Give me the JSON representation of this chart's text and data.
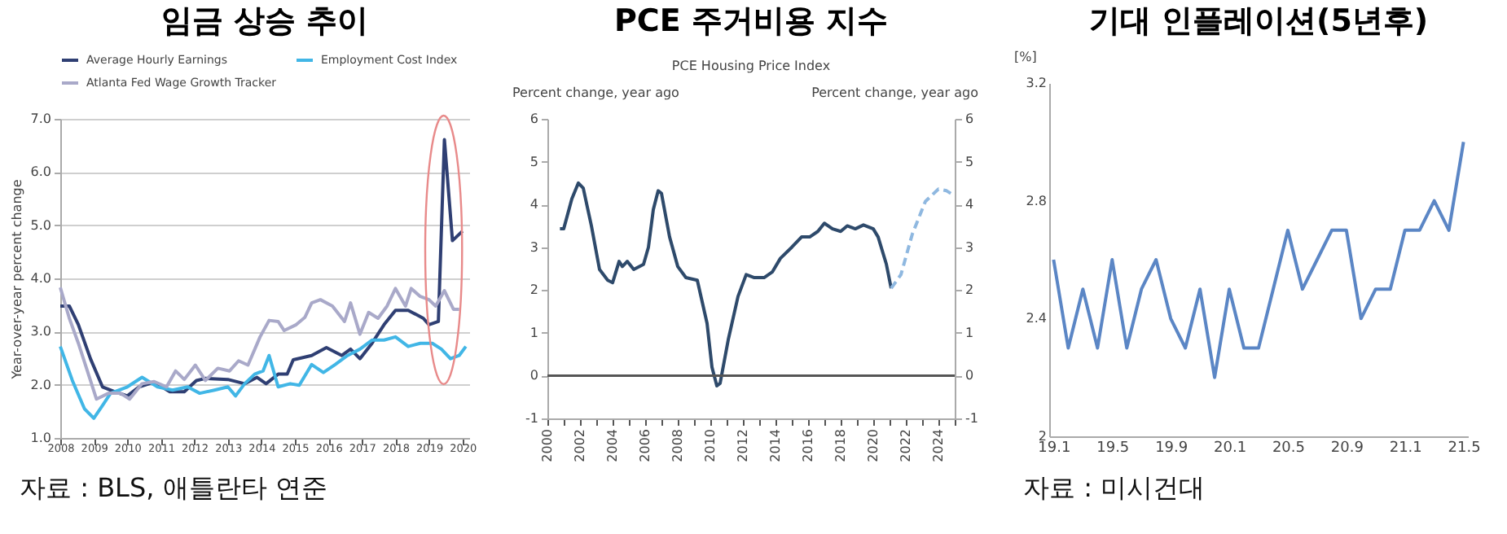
{
  "chart_data": [
    {
      "type": "line",
      "title": "임금 상승 추이",
      "ylabel": "Year-over-year percent change",
      "ylim": [
        1,
        7
      ],
      "yticks": [
        {
          "value": 1,
          "label": "1.0"
        },
        {
          "value": 2,
          "label": "2.0"
        },
        {
          "value": 3,
          "label": "3.0"
        },
        {
          "value": 4,
          "label": "4.0"
        },
        {
          "value": 5,
          "label": "5.0"
        },
        {
          "value": 6,
          "label": "6.0"
        },
        {
          "value": 7,
          "label": "7.0"
        }
      ],
      "xlim": [
        2008,
        2020.2
      ],
      "xticks": [
        2008,
        2009,
        2010,
        2011,
        2012,
        2013,
        2014,
        2015,
        2016,
        2017,
        2018,
        2019,
        2020
      ],
      "grid": "y",
      "legend": "top",
      "line_style": "solid",
      "annotations": [
        "자료 : BLS, 애틀란타 연준"
      ],
      "series": [
        {
          "name": "Average Hourly Earnings",
          "color": "#2f3f73",
          "x": [
            2008,
            2008.27,
            2008.54,
            2008.9,
            2009.26,
            2009.62,
            2010,
            2010.35,
            2010.8,
            2011.26,
            2011.7,
            2012.06,
            2012.33,
            2013,
            2013.5,
            2013.87,
            2014.14,
            2014.5,
            2014.77,
            2014.95,
            2015.5,
            2015.94,
            2016.4,
            2016.66,
            2016.94,
            2017.3,
            2017.66,
            2018,
            2018.38,
            2018.83,
            2019,
            2019.28,
            2019.46,
            2019.7,
            2020
          ],
          "values": [
            3.48,
            3.48,
            3.13,
            2.49,
            1.96,
            1.87,
            1.79,
            1.96,
            2.05,
            1.87,
            1.87,
            2.08,
            2.12,
            2.1,
            2.02,
            2.14,
            2.02,
            2.2,
            2.2,
            2.47,
            2.55,
            2.7,
            2.55,
            2.67,
            2.49,
            2.78,
            3.13,
            3.4,
            3.4,
            3.25,
            3.13,
            3.19,
            6.61,
            4.71,
            4.89
          ]
        },
        {
          "name": "Employment Cost Index",
          "color": "#41b6e6",
          "x": [
            2008,
            2008.36,
            2008.72,
            2009,
            2009.26,
            2009.5,
            2010,
            2010.44,
            2010.9,
            2011.35,
            2011.8,
            2012.16,
            2012.6,
            2013,
            2013.23,
            2013.5,
            2013.8,
            2014.05,
            2014.23,
            2014.5,
            2014.86,
            2015.13,
            2015.5,
            2015.85,
            2016.2,
            2016.57,
            2016.94,
            2017.3,
            2017.66,
            2018,
            2018.38,
            2018.74,
            2019.1,
            2019.37,
            2019.64,
            2019.9,
            2020.1
          ],
          "values": [
            2.72,
            2.08,
            1.55,
            1.37,
            1.61,
            1.84,
            1.96,
            2.14,
            1.96,
            1.9,
            1.96,
            1.84,
            1.9,
            1.96,
            1.79,
            2.02,
            2.2,
            2.26,
            2.55,
            1.96,
            2.02,
            1.99,
            2.38,
            2.23,
            2.38,
            2.55,
            2.67,
            2.84,
            2.84,
            2.9,
            2.72,
            2.78,
            2.78,
            2.67,
            2.49,
            2.55,
            2.72
          ]
        },
        {
          "name": "Atlanta Fed Wage Growth Tracker",
          "color": "#a9a9c9",
          "x": [
            2008,
            2008.27,
            2008.54,
            2008.9,
            2009.08,
            2009.44,
            2009.8,
            2010.07,
            2010.44,
            2010.8,
            2011.17,
            2011.44,
            2011.7,
            2012.03,
            2012.33,
            2012.7,
            2013.05,
            2013.32,
            2013.6,
            2013.96,
            2014.23,
            2014.5,
            2014.68,
            2015.04,
            2015.3,
            2015.5,
            2015.76,
            2016.12,
            2016.48,
            2016.66,
            2016.94,
            2017.2,
            2017.48,
            2017.75,
            2018,
            2018.3,
            2018.47,
            2018.74,
            2019,
            2019.2,
            2019.46,
            2019.73,
            2019.9
          ],
          "values": [
            3.83,
            3.25,
            2.78,
            2.08,
            1.73,
            1.84,
            1.84,
            1.73,
            2.02,
            2.06,
            1.96,
            2.26,
            2.1,
            2.37,
            2.08,
            2.31,
            2.26,
            2.45,
            2.37,
            2.9,
            3.21,
            3.19,
            3.02,
            3.13,
            3.27,
            3.54,
            3.6,
            3.48,
            3.19,
            3.54,
            2.95,
            3.36,
            3.25,
            3.48,
            3.81,
            3.48,
            3.81,
            3.66,
            3.6,
            3.48,
            3.77,
            3.42,
            3.42
          ]
        }
      ]
    },
    {
      "type": "line",
      "title": "PCE 주거비용 지수",
      "subtitle": "PCE Housing Price Index",
      "ylabel": "Percent change, year ago",
      "y2label": "Percent change, year ago",
      "ylim": [
        -1,
        6
      ],
      "yticks": [
        -1,
        0,
        1,
        2,
        3,
        4,
        5,
        6
      ],
      "y2lim": [
        -1,
        6
      ],
      "y2ticks": [
        -1,
        0,
        1,
        2,
        3,
        4,
        5,
        6
      ],
      "xlim": [
        2000,
        2025
      ],
      "xticks": [
        2000,
        {
          "value": 2001,
          "label": null
        },
        2002,
        {
          "value": 2003,
          "label": null
        },
        2004,
        {
          "value": 2005,
          "label": null
        },
        2006,
        {
          "value": 2007,
          "label": null
        },
        2008,
        {
          "value": 2009,
          "label": null
        },
        2010,
        {
          "value": 2011,
          "label": null
        },
        2012,
        {
          "value": 2013,
          "label": null
        },
        2014,
        {
          "value": 2015,
          "label": null
        },
        2016,
        {
          "value": 2017,
          "label": null
        },
        2018,
        {
          "value": 2019,
          "label": null
        },
        2020,
        {
          "value": 2021,
          "label": null
        },
        2022,
        {
          "value": 2023,
          "label": null
        },
        2024,
        {
          "value": 2025,
          "label": null
        }
      ],
      "ref_lines": [
        {
          "axis": "y",
          "value": 0,
          "color": "#555555"
        }
      ],
      "series": [
        {
          "color": "#2e4a6b",
          "line_style": "solid",
          "x": [
            2000.77,
            2001,
            2001.5,
            2001.9,
            2002.2,
            2002.7,
            2003.2,
            2003.7,
            2004,
            2004.4,
            2004.6,
            2004.9,
            2005.3,
            2005.9,
            2006.2,
            2006.5,
            2006.8,
            2007,
            2007.5,
            2008,
            2008.5,
            2009.2,
            2009.8,
            2010.1,
            2010.4,
            2010.6,
            2011.1,
            2011.7,
            2012.2,
            2012.7,
            2013.3,
            2013.8,
            2014.3,
            2015,
            2015.6,
            2016.1,
            2016.6,
            2017,
            2017.5,
            2018,
            2018.4,
            2018.9,
            2019.4,
            2020,
            2020.3,
            2020.8,
            2021.1
          ],
          "values": [
            3.43,
            3.43,
            4.13,
            4.5,
            4.38,
            3.5,
            2.48,
            2.23,
            2.17,
            2.67,
            2.55,
            2.67,
            2.48,
            2.6,
            3.0,
            3.88,
            4.32,
            4.26,
            3.24,
            2.55,
            2.29,
            2.23,
            1.22,
            0.2,
            -0.24,
            -0.18,
            0.84,
            1.85,
            2.36,
            2.29,
            2.29,
            2.42,
            2.74,
            3.0,
            3.24,
            3.24,
            3.37,
            3.56,
            3.43,
            3.37,
            3.5,
            3.43,
            3.52,
            3.43,
            3.24,
            2.61,
            2.04
          ]
        },
        {
          "color": "#8fb8e0",
          "line_style": "dashed",
          "x": [
            2021.1,
            2021.7,
            2022.4,
            2023.2,
            2024,
            2024.5,
            2025
          ],
          "values": [
            2.04,
            2.36,
            3.31,
            4.07,
            4.36,
            4.32,
            4.2
          ]
        }
      ]
    },
    {
      "type": "line",
      "title": "기대 인플레이션(5년후)",
      "ylabel": "[%]",
      "ylim": [
        2,
        3.2
      ],
      "yticks": [
        2,
        2.4,
        2.8,
        3.2
      ],
      "line_style": "solid",
      "annotations": [
        "자료 : 미시건대"
      ],
      "categories": [
        "19.1",
        null,
        null,
        null,
        "19.5",
        null,
        null,
        null,
        "19.9",
        null,
        null,
        null,
        "20.1",
        null,
        null,
        null,
        "20.5",
        null,
        null,
        null,
        "20.9",
        null,
        null,
        null,
        "21.1",
        null,
        null,
        null,
        "21.5"
      ],
      "series": [
        {
          "color": "#5b86c5",
          "values": [
            2.6,
            2.3,
            2.5,
            2.3,
            2.6,
            2.3,
            2.5,
            2.6,
            2.4,
            2.3,
            2.5,
            2.2,
            2.5,
            2.3,
            2.3,
            2.5,
            2.7,
            2.5,
            2.6,
            2.7,
            2.7,
            2.4,
            2.5,
            2.5,
            2.7,
            2.7,
            2.8,
            2.7,
            3.0
          ]
        }
      ]
    }
  ]
}
